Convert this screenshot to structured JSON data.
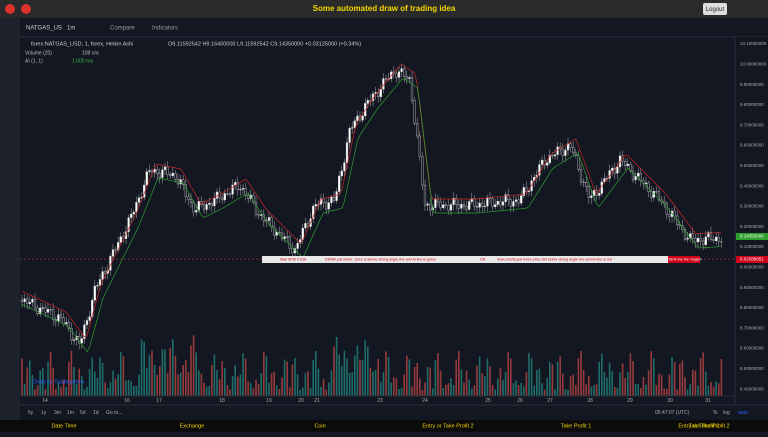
{
  "header": {
    "title": "Some automated draw of trading idea",
    "logout": "Logout"
  },
  "toolbar": {
    "symbol": "NATGAS_US",
    "interval": "1m",
    "compare": "Compare",
    "indicators": "Indicators"
  },
  "legend": {
    "series": "forex:NATGAS_USD, 1, forex, Heikin Ashi",
    "ohlc": "O9.11592542 H9.16400000 L9.11592542 C9.14350000 +0.03125000 (+0.34%)",
    "volume": "Volume (20)",
    "volume_value": "108 n/a",
    "ai": "AI (1, 1)",
    "ai_value": "1.000 n/a"
  },
  "price_axis": {
    "ticks": [
      "10.10000000",
      "10.00000000",
      "9.90000000",
      "9.80000000",
      "9.70000000",
      "9.60000000",
      "9.50000000",
      "9.40000000",
      "9.30000000",
      "9.20000000",
      "9.10000000",
      "9.00000000",
      "8.90000000",
      "8.80000000",
      "8.70000000",
      "8.60000000",
      "8.50000000",
      "8.40000000"
    ],
    "last_price": "9.14350000",
    "marker_price": "9.02589851"
  },
  "time_axis": [
    "14",
    "16",
    "17",
    "18",
    "19",
    "20",
    "21",
    "23",
    "24",
    "25",
    "26",
    "27",
    "28",
    "29",
    "30",
    "31"
  ],
  "annotation": [
    "Wait till fib 0.618",
    "DRAW just when : price is above strong angle line and AI line is green",
    "OR",
    "draw shorts just when price still below strong angle line and AI line is red",
    "THEN line the magic!!"
  ],
  "watermark": "Chart by TradingView",
  "range_buttons": [
    "5y",
    "1y",
    "3m",
    "1m",
    "5d",
    "1d",
    "Go to..."
  ],
  "status": {
    "time": "05:47:07 (UTC)",
    "percent": "%",
    "log": "log",
    "auto": "auto"
  },
  "bottom_bar": [
    "Date Time",
    "Exchange",
    "Coin",
    "Entry or Take Profit 2",
    "Take Profit 1",
    "Take Profit 2",
    "Entry or Take Profit 2"
  ]
}
